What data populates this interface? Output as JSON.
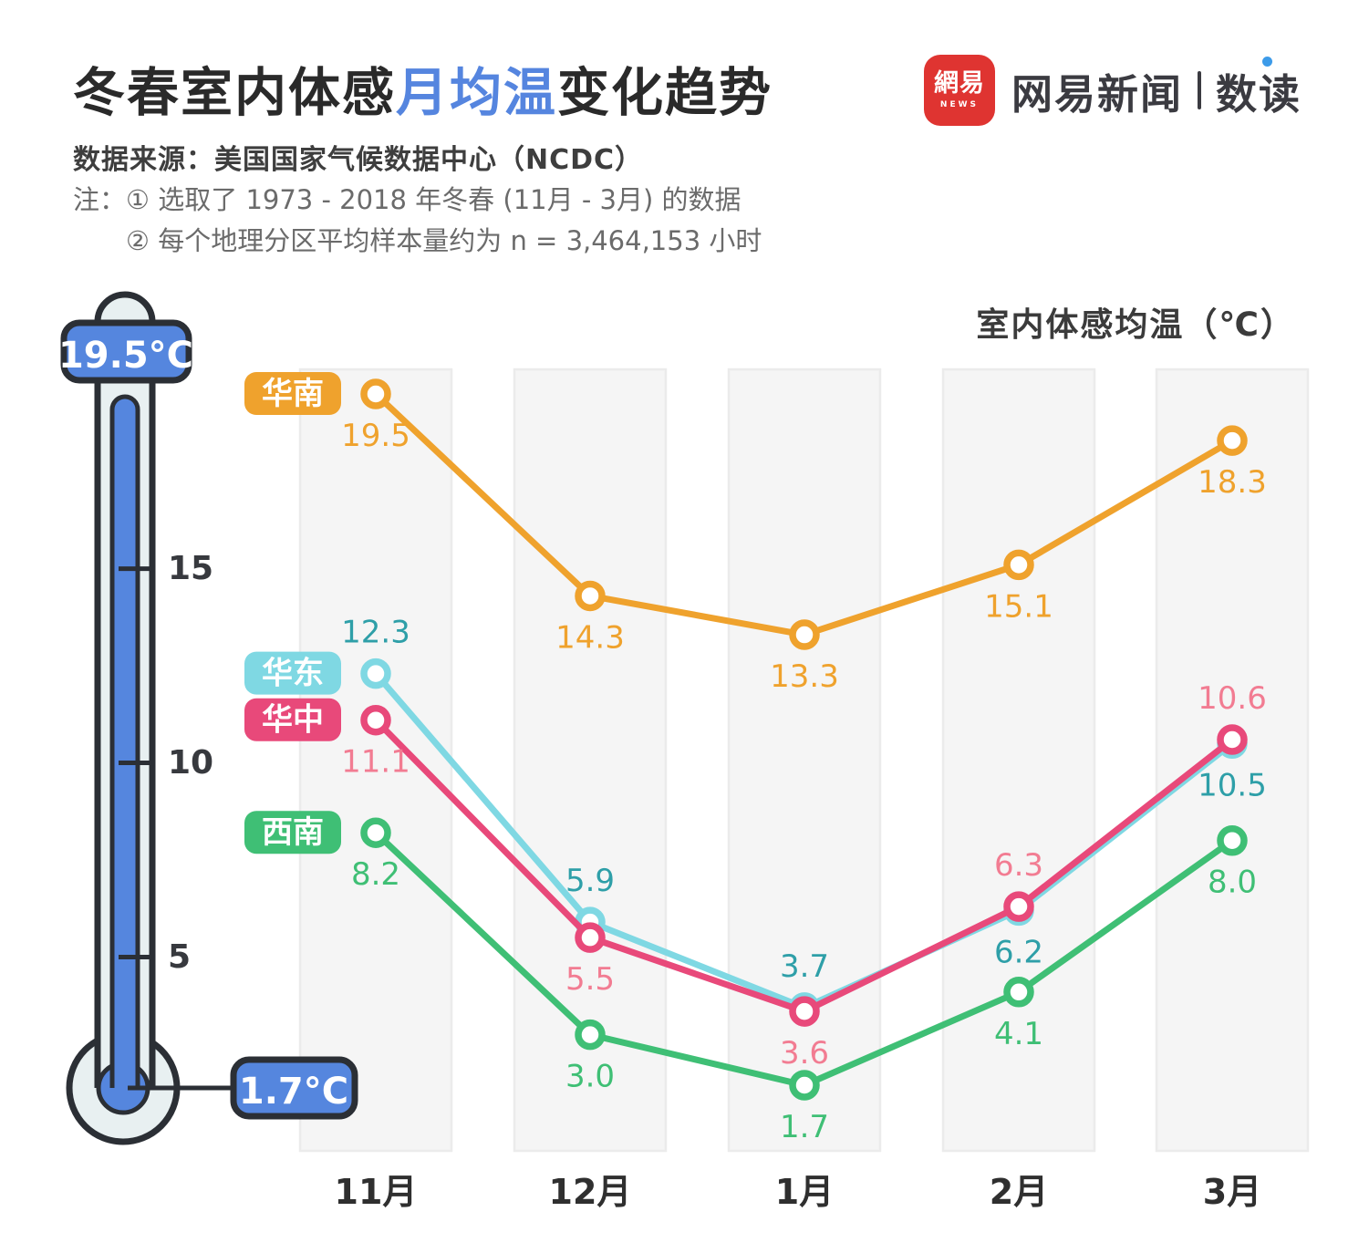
{
  "header": {
    "title_part1": "冬春室内体感",
    "title_highlight": "月均温",
    "title_part2": "变化趋势",
    "title_highlight_color": "#5585df",
    "source": "数据来源：美国国家气候数据中心（NCDC）",
    "note_prefix": "注：",
    "note1": "① 选取了 1973 - 2018 年冬春 (11月 - 3月) 的数据",
    "note2": "② 每个地理分区平均样本量约为 n = 3,464,153 小时"
  },
  "logo": {
    "icon_text": "網易",
    "icon_subtext": "NEWS",
    "icon_bg": "#df3431",
    "brand": "网易新闻",
    "sub_brand": "数读",
    "dot_color": "#3d9be9"
  },
  "thermometer": {
    "max_label": "19.5°C",
    "min_label": "1.7°C",
    "ticks": [
      {
        "value": 15,
        "label": "15"
      },
      {
        "value": 10,
        "label": "10"
      },
      {
        "value": 5,
        "label": "5"
      }
    ],
    "fill_color": "#5586de",
    "tube_color": "#e8f0f1",
    "outline_color": "#2b2f35",
    "tick_label_color": "#37393e"
  },
  "chart_data": {
    "type": "line",
    "axis_title": "室内体感均温（℃）",
    "categories": [
      "11月",
      "12月",
      "1月",
      "2月",
      "3月"
    ],
    "axis_max": 19.5,
    "axis_min": 1.7,
    "grid": "vertical-bands",
    "band_color": "#f5f5f5",
    "band_border_color": "#ebebeb",
    "legend_position": "left-of-first-point",
    "series": [
      {
        "name": "华东",
        "color": "#7fd8e3",
        "label_color": "#2e9fa8",
        "values": [
          12.3,
          5.9,
          3.7,
          6.2,
          10.5
        ],
        "point_labels": [
          "12.3",
          "5.9",
          "3.7",
          "6.2",
          "10.5"
        ],
        "label_positions": [
          "above",
          "above",
          "above",
          "below",
          "below"
        ]
      },
      {
        "name": "华中",
        "color": "#e8497a",
        "label_color": "#f27c92",
        "values": [
          11.1,
          5.5,
          3.6,
          6.3,
          10.6
        ],
        "point_labels": [
          "11.1",
          "5.5",
          "3.6",
          "6.3",
          "10.6"
        ],
        "label_positions": [
          "below",
          "below",
          "below",
          "above",
          "above"
        ]
      },
      {
        "name": "西南",
        "color": "#3fbf75",
        "label_color": "#3fbf75",
        "values": [
          8.2,
          3.0,
          1.7,
          4.1,
          8.0
        ],
        "point_labels": [
          "8.2",
          "3.0",
          "1.7",
          "4.1",
          "8.0"
        ],
        "label_positions": [
          "below",
          "below",
          "below",
          "below",
          "below"
        ]
      },
      {
        "name": "华南",
        "color": "#efa22d",
        "label_color": "#efa22d",
        "values": [
          19.5,
          14.3,
          13.3,
          15.1,
          18.3
        ],
        "point_labels": [
          "19.5",
          "14.3",
          "13.3",
          "15.1",
          "18.3"
        ],
        "label_positions": [
          "below",
          "below",
          "below",
          "below",
          "below"
        ]
      }
    ]
  }
}
